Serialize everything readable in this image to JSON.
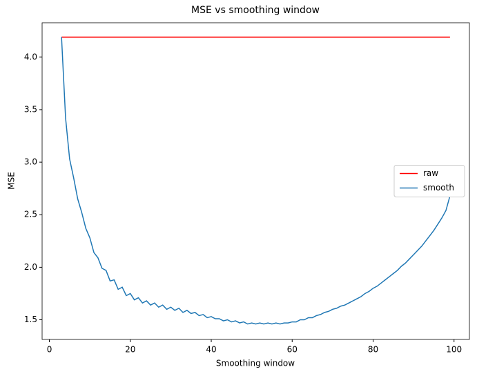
{
  "chart_data": {
    "type": "line",
    "title": "MSE vs smoothing window",
    "x_label": "Smoothing window",
    "y_label": "MSE",
    "xlim": [
      -1.8,
      103.8
    ],
    "ylim": [
      1.313,
      4.327
    ],
    "xticks": [
      0,
      20,
      40,
      60,
      80,
      100
    ],
    "yticks": [
      1.5,
      {
        "value": 2,
        "label": "2.0"
      },
      2.5,
      {
        "value": 3,
        "label": "3.0"
      },
      3.5,
      {
        "value": 4,
        "label": "4.0"
      }
    ],
    "legend": "center right",
    "series": [
      {
        "name": "raw",
        "color": "#ff0000",
        "x": [
          3,
          99
        ],
        "values": [
          4.19,
          4.19
        ]
      },
      {
        "name": "smooth",
        "color": "#1f77b4",
        "x": [
          3,
          4,
          5,
          6,
          7,
          8,
          9,
          10,
          11,
          12,
          13,
          14,
          15,
          16,
          17,
          18,
          19,
          20,
          21,
          22,
          23,
          24,
          25,
          26,
          27,
          28,
          29,
          30,
          31,
          32,
          33,
          34,
          35,
          36,
          37,
          38,
          39,
          40,
          41,
          42,
          43,
          44,
          45,
          46,
          47,
          48,
          49,
          50,
          51,
          52,
          53,
          54,
          55,
          56,
          57,
          58,
          59,
          60,
          61,
          62,
          63,
          64,
          65,
          66,
          67,
          68,
          69,
          70,
          71,
          72,
          73,
          74,
          75,
          76,
          77,
          78,
          79,
          80,
          81,
          82,
          83,
          84,
          85,
          86,
          87,
          88,
          89,
          90,
          91,
          92,
          93,
          94,
          95,
          96,
          97,
          98,
          99
        ],
        "values": [
          4.19,
          3.42,
          3.03,
          2.85,
          2.65,
          2.52,
          2.37,
          2.28,
          2.14,
          2.09,
          1.99,
          1.97,
          1.87,
          1.88,
          1.79,
          1.81,
          1.73,
          1.75,
          1.69,
          1.71,
          1.66,
          1.68,
          1.64,
          1.66,
          1.62,
          1.64,
          1.6,
          1.62,
          1.59,
          1.61,
          1.57,
          1.59,
          1.56,
          1.57,
          1.54,
          1.55,
          1.52,
          1.53,
          1.51,
          1.51,
          1.49,
          1.5,
          1.48,
          1.49,
          1.47,
          1.48,
          1.46,
          1.47,
          1.46,
          1.47,
          1.46,
          1.47,
          1.46,
          1.47,
          1.46,
          1.47,
          1.47,
          1.48,
          1.48,
          1.5,
          1.5,
          1.52,
          1.52,
          1.54,
          1.55,
          1.57,
          1.58,
          1.6,
          1.61,
          1.63,
          1.64,
          1.66,
          1.68,
          1.7,
          1.72,
          1.75,
          1.77,
          1.8,
          1.82,
          1.85,
          1.88,
          1.91,
          1.94,
          1.97,
          2.01,
          2.04,
          2.08,
          2.12,
          2.16,
          2.2,
          2.25,
          2.3,
          2.35,
          2.41,
          2.47,
          2.54,
          2.68
        ]
      }
    ]
  }
}
